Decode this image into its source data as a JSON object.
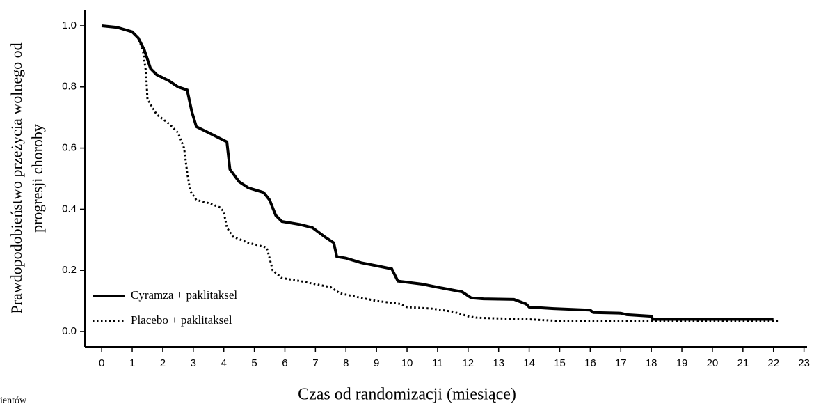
{
  "chart_data": {
    "type": "line",
    "ylabel": [
      "Prawdopodobieństwo przeżycia wolnego od",
      "progresji choroby"
    ],
    "xlabel": "Czas od randomizacji (miesiące)",
    "note": "ientów",
    "xlim": [
      -0.55,
      23.1
    ],
    "ylim": [
      -0.05,
      1.05
    ],
    "xticks": [
      0,
      1,
      2,
      3,
      4,
      5,
      6,
      7,
      8,
      9,
      10,
      11,
      12,
      13,
      14,
      15,
      16,
      17,
      18,
      19,
      20,
      21,
      22,
      23
    ],
    "yticks": [
      {
        "value": 0,
        "label": "0.0"
      },
      0.2,
      0.4,
      0.6,
      0.8,
      {
        "value": 1,
        "label": "1.0"
      }
    ],
    "legend": "lower left",
    "series": [
      {
        "name": "Cyramza + paklitaksel",
        "color": "#000000",
        "style": "solid",
        "x": [
          0,
          0.5,
          1,
          1.2,
          1.4,
          1.6,
          1.8,
          2.2,
          2.5,
          2.8,
          2.95,
          3.1,
          3.5,
          3.9,
          4.1,
          4.2,
          4.5,
          4.8,
          5.3,
          5.5,
          5.7,
          5.9,
          6.5,
          6.9,
          7.3,
          7.6,
          7.7,
          8.0,
          8.5,
          9.0,
          9.5,
          9.7,
          10.5,
          11,
          11.8,
          12.1,
          12.5,
          13.5,
          13.9,
          14,
          14.8,
          16,
          16.1,
          17,
          17.2,
          18.0,
          18.05,
          22
        ],
        "values": [
          1.0,
          0.995,
          0.98,
          0.96,
          0.92,
          0.86,
          0.84,
          0.82,
          0.8,
          0.79,
          0.72,
          0.67,
          0.65,
          0.63,
          0.62,
          0.53,
          0.49,
          0.47,
          0.455,
          0.43,
          0.38,
          0.36,
          0.35,
          0.34,
          0.31,
          0.29,
          0.245,
          0.24,
          0.225,
          0.215,
          0.205,
          0.165,
          0.155,
          0.145,
          0.13,
          0.11,
          0.107,
          0.105,
          0.09,
          0.08,
          0.075,
          0.07,
          0.062,
          0.06,
          0.055,
          0.05,
          0.04,
          0.04
        ]
      },
      {
        "name": "Placebo + paklitaksel",
        "color": "#000000",
        "style": "dotted",
        "x": [
          0,
          0.5,
          1,
          1.2,
          1.35,
          1.45,
          1.5,
          1.8,
          2.2,
          2.5,
          2.7,
          2.8,
          2.9,
          3.1,
          3.5,
          3.9,
          4.0,
          4.1,
          4.3,
          4.8,
          5.2,
          5.4,
          5.5,
          5.6,
          5.9,
          6.5,
          7.0,
          7.5,
          7.8,
          8.5,
          9.0,
          9.8,
          10,
          10.8,
          11.5,
          12.0,
          12.3,
          14,
          14.9,
          22.2
        ],
        "values": [
          1.0,
          0.995,
          0.98,
          0.96,
          0.92,
          0.85,
          0.76,
          0.71,
          0.68,
          0.65,
          0.6,
          0.52,
          0.46,
          0.43,
          0.42,
          0.405,
          0.39,
          0.34,
          0.31,
          0.29,
          0.28,
          0.275,
          0.24,
          0.2,
          0.175,
          0.165,
          0.155,
          0.145,
          0.125,
          0.11,
          0.1,
          0.09,
          0.08,
          0.075,
          0.065,
          0.05,
          0.045,
          0.04,
          0.035,
          0.035
        ]
      }
    ]
  }
}
